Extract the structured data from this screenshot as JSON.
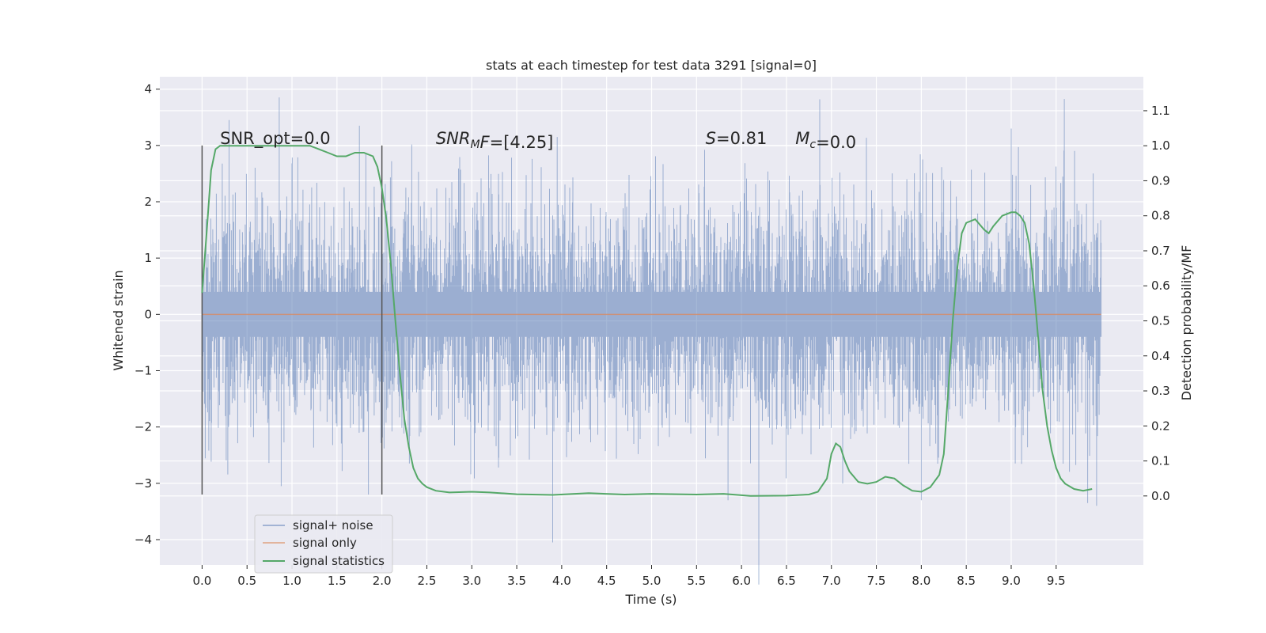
{
  "chart_data": {
    "type": "line",
    "title": "stats at each timestep for test data 3291 [signal=0]",
    "xlabel": "Time (s)",
    "ylabel": "Whitened strain",
    "y2label": "Detection probability/MF",
    "xlim": [
      -0.47,
      10.47
    ],
    "ylim": [
      -4.45,
      4.22
    ],
    "y2lim": [
      -0.197,
      1.197
    ],
    "xticks": [
      0.0,
      0.5,
      1.0,
      1.5,
      2.0,
      2.5,
      3.0,
      3.5,
      4.0,
      4.5,
      5.0,
      5.5,
      6.0,
      6.5,
      7.0,
      7.5,
      8.0,
      8.5,
      9.0,
      9.5
    ],
    "xtick_labels": [
      "0.0",
      "0.5",
      "1.0",
      "1.5",
      "2.0",
      "2.5",
      "3.0",
      "3.5",
      "4.0",
      "4.5",
      "5.0",
      "5.5",
      "6.0",
      "6.5",
      "7.0",
      "7.5",
      "8.0",
      "8.5",
      "9.0",
      "9.5"
    ],
    "yticks": [
      -4,
      -3,
      -2,
      -1,
      0,
      1,
      2,
      3,
      4
    ],
    "ytick_labels": [
      "−4",
      "−3",
      "−2",
      "−1",
      "0",
      "1",
      "2",
      "3",
      "4"
    ],
    "y2ticks": [
      0.0,
      0.1,
      0.2,
      0.3,
      0.4,
      0.5,
      0.6,
      0.7,
      0.8,
      0.9,
      1.0,
      1.1
    ],
    "y2tick_labels": [
      "0.0",
      "0.1",
      "0.2",
      "0.3",
      "0.4",
      "0.5",
      "0.6",
      "0.7",
      "0.8",
      "0.9",
      "1.0",
      "1.1"
    ],
    "grid": true,
    "legend_position": "lower-left",
    "series": [
      {
        "name": "signal+ noise",
        "color": "#4c72b0",
        "axis": "left",
        "x_range": [
          0.0,
          10.0
        ],
        "typical_amplitude": 1.0,
        "peak_values": [
          {
            "x": 0.3,
            "y": 3.45
          },
          {
            "x": 0.88,
            "y": -3.05
          },
          {
            "x": 1.75,
            "y": 3.35
          },
          {
            "x": 1.85,
            "y": -3.2
          },
          {
            "x": 3.9,
            "y": -4.05
          },
          {
            "x": 3.95,
            "y": 3.15
          },
          {
            "x": 5.85,
            "y": -3.3
          },
          {
            "x": 6.87,
            "y": 3.82
          },
          {
            "x": 8.0,
            "y": -3.3
          },
          {
            "x": 9.0,
            "y": 3.3
          },
          {
            "x": 9.85,
            "y": -3.35
          },
          {
            "x": 9.95,
            "y": -3.4
          }
        ]
      },
      {
        "name": "signal only",
        "color": "#dd8452",
        "axis": "left",
        "x": [
          0.0,
          10.0
        ],
        "y": [
          0.0,
          0.0
        ]
      },
      {
        "name": "signal statistics",
        "color": "#55a868",
        "axis": "right",
        "x": [
          0.0,
          0.05,
          0.1,
          0.15,
          0.2,
          0.3,
          0.5,
          0.8,
          1.0,
          1.2,
          1.3,
          1.4,
          1.5,
          1.6,
          1.7,
          1.8,
          1.9,
          1.95,
          2.0,
          2.05,
          2.1,
          2.15,
          2.2,
          2.25,
          2.3,
          2.35,
          2.4,
          2.45,
          2.5,
          2.6,
          2.75,
          3.0,
          3.2,
          3.5,
          3.9,
          4.3,
          4.7,
          5.0,
          5.5,
          5.8,
          6.1,
          6.5,
          6.75,
          6.85,
          6.95,
          7.0,
          7.05,
          7.1,
          7.15,
          7.2,
          7.3,
          7.4,
          7.5,
          7.6,
          7.7,
          7.8,
          7.9,
          8.0,
          8.1,
          8.2,
          8.25,
          8.3,
          8.35,
          8.4,
          8.45,
          8.5,
          8.6,
          8.7,
          8.75,
          8.8,
          8.9,
          9.0,
          9.05,
          9.1,
          9.15,
          9.2,
          9.25,
          9.3,
          9.35,
          9.4,
          9.45,
          9.5,
          9.55,
          9.6,
          9.7,
          9.8,
          9.9
        ],
        "y": [
          0.58,
          0.75,
          0.93,
          0.99,
          1.0,
          1.0,
          1.0,
          1.0,
          1.0,
          1.0,
          0.99,
          0.98,
          0.97,
          0.97,
          0.98,
          0.98,
          0.97,
          0.94,
          0.88,
          0.79,
          0.66,
          0.5,
          0.35,
          0.22,
          0.14,
          0.08,
          0.05,
          0.035,
          0.025,
          0.015,
          0.01,
          0.012,
          0.01,
          0.005,
          0.003,
          0.008,
          0.004,
          0.006,
          0.004,
          0.006,
          0.0,
          0.001,
          0.004,
          0.012,
          0.05,
          0.12,
          0.15,
          0.14,
          0.1,
          0.07,
          0.04,
          0.035,
          0.04,
          0.055,
          0.05,
          0.03,
          0.015,
          0.012,
          0.025,
          0.06,
          0.12,
          0.3,
          0.5,
          0.65,
          0.75,
          0.78,
          0.79,
          0.76,
          0.75,
          0.77,
          0.8,
          0.81,
          0.81,
          0.8,
          0.78,
          0.72,
          0.6,
          0.45,
          0.3,
          0.2,
          0.13,
          0.08,
          0.05,
          0.035,
          0.02,
          0.015,
          0.02
        ]
      }
    ],
    "vlines": [
      {
        "x": 0.0,
        "ymin": -3.2,
        "ymax": 3.0,
        "color": "#555555"
      },
      {
        "x": 2.0,
        "ymin": -3.2,
        "ymax": 3.0,
        "color": "#555555"
      }
    ],
    "annotations": [
      {
        "id": "snr-opt",
        "x": 0.2,
        "y": 3.0,
        "parts": [
          {
            "t": "SNR_opt=0.0"
          }
        ]
      },
      {
        "id": "snr-mf",
        "x": 2.6,
        "y": 3.0,
        "parts": [
          {
            "t": "SNR",
            "i": true
          },
          {
            "t": "M",
            "i": true,
            "sub": true
          },
          {
            "t": "F",
            "i": true
          },
          {
            "t": "=[4.25]"
          }
        ]
      },
      {
        "id": "s-stat",
        "x": 5.6,
        "y": 3.0,
        "parts": [
          {
            "t": "S",
            "i": true
          },
          {
            "t": "=0.81"
          }
        ]
      },
      {
        "id": "mc-stat",
        "x": 6.6,
        "y": 3.0,
        "parts": [
          {
            "t": "M",
            "i": true
          },
          {
            "t": "c",
            "i": true,
            "sub": true
          },
          {
            "t": "=0.0"
          }
        ]
      }
    ],
    "legend": {
      "entries": [
        "signal+ noise",
        "signal only",
        "signal statistics"
      ],
      "colors": [
        "#4c72b0",
        "#dd8452",
        "#55a868"
      ]
    }
  }
}
